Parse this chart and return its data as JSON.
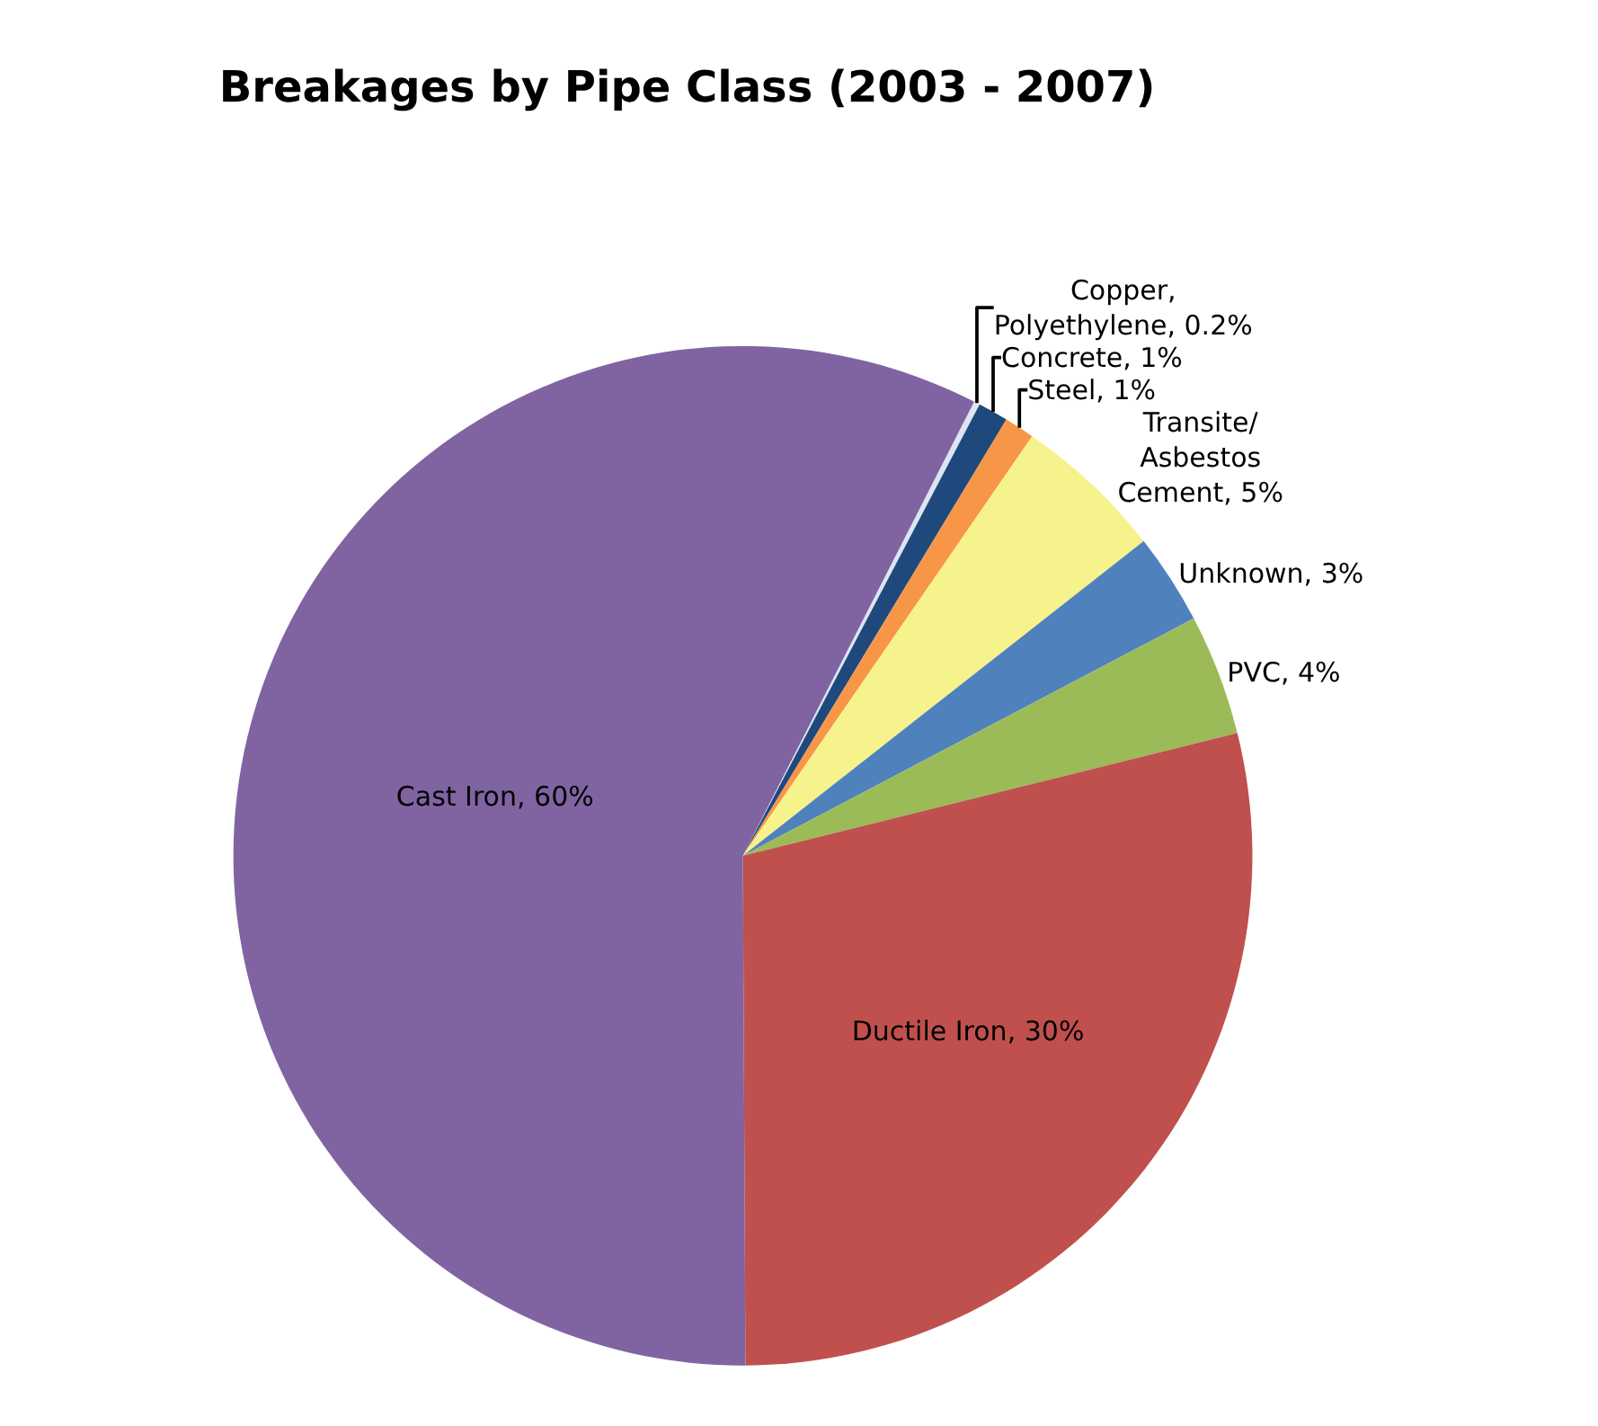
{
  "chart_data": {
    "type": "pie",
    "title": "Breakages by Pipe Class (2003 - 2007)",
    "categories": [
      "Copper, Polyethylene",
      "Concrete",
      "Steel",
      "Transite/ Asbestos Cement",
      "Unknown",
      "PVC",
      "Ductile Iron",
      "Cast Iron"
    ],
    "values": [
      0.2,
      1,
      1,
      5,
      3,
      4,
      30,
      60
    ],
    "value_labels": [
      "0.2%",
      "1%",
      "1%",
      "5%",
      "3%",
      "4%",
      "30%",
      "60%"
    ],
    "colors": [
      "#dce6f2",
      "#1f497d",
      "#f79646",
      "#f6f28c",
      "#4f81bd",
      "#9bbb59",
      "#c0504d",
      "#8064a2"
    ],
    "legend": false
  }
}
